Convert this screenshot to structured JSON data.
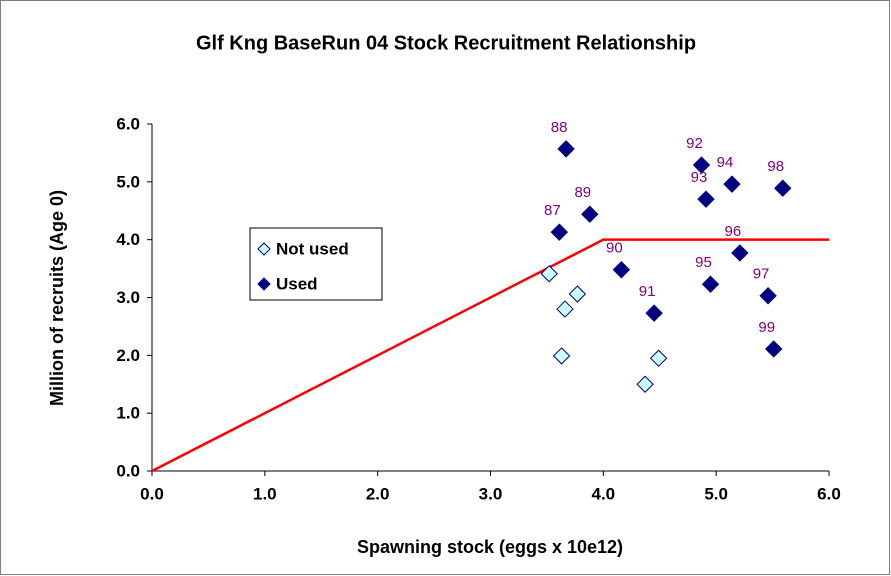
{
  "chart_data": {
    "type": "scatter",
    "title": "Glf Kng BaseRun 04 Stock Recruitment Relationship",
    "x_label": "Spawning stock (eggs x 10e12)",
    "y_label": "Million of recruits (Age 0)",
    "xlim": [
      0,
      6
    ],
    "ylim": [
      0,
      6
    ],
    "xticks": [
      {
        "value": 0,
        "label": "0.0"
      },
      {
        "value": 1,
        "label": "1.0"
      },
      {
        "value": 2,
        "label": "2.0"
      },
      {
        "value": 3,
        "label": "3.0"
      },
      {
        "value": 4,
        "label": "4.0"
      },
      {
        "value": 5,
        "label": "5.0"
      },
      {
        "value": 6,
        "label": "6.0"
      }
    ],
    "yticks": [
      {
        "value": 0,
        "label": "0.0"
      },
      {
        "value": 1,
        "label": "1.0"
      },
      {
        "value": 2,
        "label": "2.0"
      },
      {
        "value": 3,
        "label": "3.0"
      },
      {
        "value": 4,
        "label": "4.0"
      },
      {
        "value": 5,
        "label": "5.0"
      },
      {
        "value": 6,
        "label": "6.0"
      }
    ],
    "series": [
      {
        "name": "Not used",
        "color": "#ccffff",
        "x": [
          3.52,
          3.66,
          3.63,
          3.77,
          4.37,
          4.49
        ],
        "values": [
          3.41,
          2.8,
          1.99,
          3.06,
          1.5,
          1.95
        ]
      },
      {
        "name": "Used",
        "color": "#000080",
        "x": [
          3.61,
          3.67,
          3.88,
          4.16,
          4.45,
          4.87,
          4.91,
          5.14,
          4.95,
          5.21,
          5.46,
          5.59,
          5.51
        ],
        "values": [
          4.13,
          5.57,
          4.44,
          3.48,
          2.73,
          5.29,
          4.7,
          4.96,
          3.23,
          3.77,
          3.03,
          4.89,
          2.11
        ],
        "labels": [
          "87",
          "88",
          "89",
          "90",
          "91",
          "92",
          "93",
          "94",
          "95",
          "96",
          "97",
          "98",
          "99"
        ]
      }
    ],
    "lines": [
      {
        "color": "#ff0000",
        "x": [
          0,
          4,
          6
        ],
        "values": [
          0,
          4,
          4
        ]
      }
    ]
  }
}
